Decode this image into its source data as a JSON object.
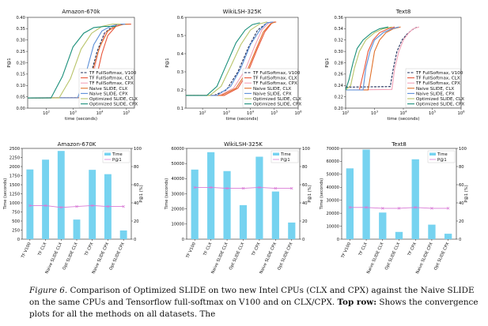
{
  "caption": {
    "figure_label": "Figure 6.",
    "text": " Comparison of Optimized SLIDE on two new Intel CPUs (CLX and CPX) against the Naive SLIDE on the same CPUs and Tensorflow full-softmax on V100 and on CLX/CPX. ",
    "bold": "Top row:",
    "rest": " Shows the convergence plots for all the methods on all datasets. The"
  },
  "colors": {
    "tf_v100": "#1f2d5a",
    "tf_clx": "#e8553a",
    "tf_cpx": "#f2a3b8",
    "naive_clx": "#e0702a",
    "naive_cpx": "#5b8fd8",
    "opt_clx": "#b9c46a",
    "opt_cpx": "#1a8f7a",
    "bar": "#76d3f0",
    "p1": "#d97ad6"
  },
  "chart_data": [
    {
      "type": "line",
      "title": "Amazon-670k",
      "xlabel": "time (seconds)",
      "ylabel": "P@1",
      "xscale": "log",
      "xlim": [
        20,
        200000
      ],
      "ylim": [
        0.0,
        0.4
      ],
      "x_ticks": [
        "10^2",
        "10^3",
        "10^4",
        "10^5"
      ],
      "y_ticks": [
        "0.00",
        "0.05",
        "0.10",
        "0.15",
        "0.20",
        "0.25",
        "0.30",
        "0.35",
        "0.40"
      ],
      "legend_position": "lower right",
      "series": [
        {
          "name": "TF FullSoftmax, V100",
          "color_key": "tf_v100",
          "dashed": true,
          "x": [
            20,
            2000,
            4000,
            8000,
            15000,
            30000,
            60000,
            100000
          ],
          "y": [
            0.045,
            0.046,
            0.12,
            0.25,
            0.33,
            0.36,
            0.37,
            0.37
          ]
        },
        {
          "name": "TF FullSoftmax, CLX",
          "color_key": "tf_clx",
          "x": [
            20,
            4000,
            7000,
            12000,
            20000,
            40000,
            80000,
            150000
          ],
          "y": [
            0.045,
            0.046,
            0.12,
            0.24,
            0.32,
            0.36,
            0.37,
            0.37
          ]
        },
        {
          "name": "TF FullSoftmax, CPX",
          "color_key": "tf_cpx",
          "x": [
            20,
            2500,
            5000,
            9000,
            16000,
            35000,
            70000,
            120000
          ],
          "y": [
            0.045,
            0.046,
            0.12,
            0.25,
            0.33,
            0.36,
            0.37,
            0.37
          ]
        },
        {
          "name": "Naive SLIDE, CLX",
          "color_key": "naive_clx",
          "x": [
            20,
            2500,
            5000,
            10000,
            20000,
            40000,
            80000,
            120000
          ],
          "y": [
            0.045,
            0.046,
            0.15,
            0.27,
            0.34,
            0.36,
            0.37,
            0.37
          ]
        },
        {
          "name": "Naive SLIDE, CPX",
          "color_key": "naive_cpx",
          "x": [
            20,
            1500,
            3000,
            6000,
            12000,
            25000,
            50000,
            90000
          ],
          "y": [
            0.045,
            0.046,
            0.15,
            0.28,
            0.34,
            0.36,
            0.37,
            0.37
          ]
        },
        {
          "name": "Optimized SLIDE, CLX",
          "color_key": "opt_clx",
          "x": [
            20,
            300,
            800,
            2000,
            5000,
            12000,
            30000,
            60000
          ],
          "y": [
            0.045,
            0.045,
            0.13,
            0.26,
            0.33,
            0.36,
            0.37,
            0.37
          ]
        },
        {
          "name": "Optimized SLIDE, CPX",
          "color_key": "opt_cpx",
          "x": [
            20,
            150,
            400,
            1000,
            2500,
            6000,
            15000,
            40000
          ],
          "y": [
            0.045,
            0.045,
            0.14,
            0.27,
            0.33,
            0.355,
            0.36,
            0.36
          ]
        }
      ]
    },
    {
      "type": "line",
      "title": "WikiLSH-325K",
      "xlabel": "time (seconds)",
      "ylabel": "P@1",
      "xscale": "log",
      "xlim": [
        20,
        1000000
      ],
      "ylim": [
        0.1,
        0.6
      ],
      "x_ticks": [
        "10^2",
        "10^3",
        "10^4",
        "10^5",
        "10^6"
      ],
      "y_ticks": [
        "0.1",
        "0.2",
        "0.3",
        "0.4",
        "0.5",
        "0.6"
      ],
      "legend_position": "lower right",
      "series": [
        {
          "name": "TF FullSoftmax, V100",
          "color_key": "tf_v100",
          "dashed": true,
          "x": [
            20,
            300,
            1000,
            3000,
            8000,
            20000,
            50000,
            100000
          ],
          "y": [
            0.17,
            0.17,
            0.2,
            0.3,
            0.43,
            0.53,
            0.57,
            0.575
          ]
        },
        {
          "name": "TF FullSoftmax, CLX",
          "color_key": "tf_clx",
          "x": [
            20,
            800,
            3000,
            8000,
            20000,
            40000,
            80000,
            120000
          ],
          "y": [
            0.17,
            0.17,
            0.21,
            0.3,
            0.43,
            0.52,
            0.57,
            0.575
          ]
        },
        {
          "name": "TF FullSoftmax, CPX",
          "color_key": "tf_cpx",
          "x": [
            20,
            500,
            2000,
            6000,
            15000,
            30000,
            60000,
            100000
          ],
          "y": [
            0.17,
            0.17,
            0.21,
            0.31,
            0.44,
            0.53,
            0.57,
            0.575
          ]
        },
        {
          "name": "Naive SLIDE, CLX",
          "color_key": "naive_clx",
          "x": [
            20,
            600,
            2500,
            7000,
            18000,
            35000,
            70000,
            110000
          ],
          "y": [
            0.17,
            0.17,
            0.21,
            0.3,
            0.43,
            0.52,
            0.565,
            0.575
          ]
        },
        {
          "name": "Naive SLIDE, CPX",
          "color_key": "naive_cpx",
          "x": [
            20,
            400,
            1500,
            4000,
            10000,
            25000,
            50000,
            90000
          ],
          "y": [
            0.17,
            0.17,
            0.22,
            0.32,
            0.45,
            0.53,
            0.57,
            0.575
          ]
        },
        {
          "name": "Optimized SLIDE, CLX",
          "color_key": "opt_clx",
          "x": [
            20,
            200,
            600,
            1500,
            4000,
            10000,
            25000,
            50000
          ],
          "y": [
            0.17,
            0.17,
            0.22,
            0.33,
            0.45,
            0.53,
            0.565,
            0.575
          ]
        },
        {
          "name": "Optimized SLIDE, CPX",
          "color_key": "opt_cpx",
          "x": [
            20,
            150,
            400,
            1000,
            2500,
            6000,
            12000,
            25000
          ],
          "y": [
            0.17,
            0.17,
            0.22,
            0.34,
            0.46,
            0.53,
            0.56,
            0.57
          ]
        }
      ]
    },
    {
      "type": "line",
      "title": "Text8",
      "xlabel": "time (seconds)",
      "ylabel": "P@1",
      "xscale": "log",
      "xlim": [
        100,
        1000000
      ],
      "ylim": [
        0.2,
        0.36
      ],
      "x_ticks": [
        "10^2",
        "10^3",
        "10^4",
        "10^5",
        "10^6"
      ],
      "y_ticks": [
        "0.20",
        "0.22",
        "0.24",
        "0.26",
        "0.28",
        "0.30",
        "0.32",
        "0.34",
        "0.36"
      ],
      "legend_position": "lower right",
      "series": [
        {
          "name": "TF FullSoftmax, V100",
          "color_key": "tf_v100",
          "dashed": true,
          "x": [
            100,
            3500,
            4500,
            6000,
            9000,
            13000,
            20000,
            30000
          ],
          "y": [
            0.237,
            0.238,
            0.27,
            0.3,
            0.32,
            0.33,
            0.338,
            0.343
          ]
        },
        {
          "name": "TF FullSoftmax, CLX",
          "color_key": "tf_clx",
          "x": [
            100,
            300,
            450,
            600,
            900,
            1500,
            3000,
            5000
          ],
          "y": [
            0.232,
            0.232,
            0.27,
            0.3,
            0.32,
            0.333,
            0.34,
            0.343
          ]
        },
        {
          "name": "TF FullSoftmax, CPX",
          "color_key": "tf_cpx",
          "x": [
            100,
            4000,
            5000,
            7000,
            10000,
            15000,
            22000,
            35000
          ],
          "y": [
            0.232,
            0.233,
            0.27,
            0.3,
            0.32,
            0.332,
            0.34,
            0.343
          ]
        },
        {
          "name": "Naive SLIDE, CLX",
          "color_key": "naive_clx",
          "x": [
            100,
            600,
            800,
            1000,
            1500,
            2500,
            4500,
            8000
          ],
          "y": [
            0.232,
            0.232,
            0.27,
            0.3,
            0.32,
            0.333,
            0.34,
            0.343
          ]
        },
        {
          "name": "Naive SLIDE, CPX",
          "color_key": "naive_cpx",
          "x": [
            100,
            400,
            500,
            700,
            1000,
            2000,
            4000,
            7000
          ],
          "y": [
            0.232,
            0.232,
            0.27,
            0.3,
            0.32,
            0.333,
            0.34,
            0.343
          ]
        },
        {
          "name": "Optimized SLIDE, CLX",
          "color_key": "opt_clx",
          "x": [
            100,
            150,
            200,
            300,
            500,
            1000,
            2000,
            4000
          ],
          "y": [
            0.232,
            0.24,
            0.27,
            0.3,
            0.32,
            0.333,
            0.34,
            0.343
          ]
        },
        {
          "name": "Optimized SLIDE, CPX",
          "color_key": "opt_cpx",
          "x": [
            100,
            130,
            180,
            250,
            400,
            800,
            1500,
            3000
          ],
          "y": [
            0.232,
            0.25,
            0.28,
            0.305,
            0.32,
            0.333,
            0.34,
            0.343
          ]
        }
      ]
    },
    {
      "type": "bar",
      "title": "Amazon-670K",
      "ylabel": "Time (seconds)",
      "y2label": "P@1 (%)",
      "categories": [
        "TF V100",
        "TF CLX",
        "Naive SLIDE CLX",
        "Opt SLIDE CLX",
        "TF CPX",
        "Naive SLIDE CPX",
        "Opt SLIDE CPX"
      ],
      "ylim": [
        0,
        2500
      ],
      "y_ticks": [
        "0",
        "250",
        "500",
        "750",
        "1000",
        "1250",
        "1500",
        "1750",
        "2000",
        "2250",
        "2500"
      ],
      "y2lim": [
        0,
        100
      ],
      "y2_ticks": [
        "0",
        "20",
        "40",
        "60",
        "80",
        "100"
      ],
      "legend_position": "upper right",
      "series": [
        {
          "name": "Time",
          "color_key": "bar",
          "values": [
            1920,
            2190,
            2430,
            540,
            1910,
            1790,
            240
          ]
        },
        {
          "name": "P@1",
          "color_key": "p1",
          "axis": "right",
          "values": [
            37,
            37,
            35,
            36,
            37,
            36,
            36
          ]
        }
      ]
    },
    {
      "type": "bar",
      "title": "WikiLSH-325K",
      "ylabel": "Time (seconds)",
      "y2label": "P@1 (%)",
      "categories": [
        "TF V100",
        "TF CLX",
        "Naive SLIDE CLX",
        "Opt SLIDE CLX",
        "TF CPX",
        "Naive SLIDE CPX",
        "Opt SLIDE CPX"
      ],
      "ylim": [
        0,
        60000
      ],
      "y_ticks": [
        "0",
        "10000",
        "20000",
        "30000",
        "40000",
        "50000",
        "60000"
      ],
      "y2lim": [
        0,
        100
      ],
      "y2_ticks": [
        "0",
        "20",
        "40",
        "60",
        "80",
        "100"
      ],
      "legend_position": "upper right",
      "series": [
        {
          "name": "Time",
          "color_key": "bar",
          "values": [
            46000,
            57500,
            45000,
            22500,
            54500,
            31500,
            11000
          ]
        },
        {
          "name": "P@1",
          "color_key": "p1",
          "axis": "right",
          "values": [
            57,
            57,
            56,
            56,
            57,
            56,
            56
          ]
        }
      ]
    },
    {
      "type": "bar",
      "title": "Text8",
      "ylabel": "Time (seconds)",
      "y2label": "P@1 (%)",
      "categories": [
        "TF V100",
        "TF CLX",
        "Naive SLIDE CLX",
        "Opt SLIDE CLX",
        "TF CPX",
        "Naive SLIDE CPX",
        "Opt SLIDE CPX"
      ],
      "ylim": [
        0,
        75000
      ],
      "y_ticks": [
        "0",
        "10000",
        "20000",
        "30000",
        "40000",
        "50000",
        "60000",
        "70000"
      ],
      "y2lim": [
        0,
        100
      ],
      "y2_ticks": [
        "0",
        "20",
        "40",
        "60",
        "80",
        "100"
      ],
      "legend_position": "upper right",
      "series": [
        {
          "name": "Time",
          "color_key": "bar",
          "values": [
            58500,
            74000,
            22000,
            6000,
            66000,
            12000,
            4500
          ]
        },
        {
          "name": "P@1",
          "color_key": "p1",
          "axis": "right",
          "values": [
            35,
            35,
            34,
            34,
            35,
            34,
            34
          ]
        }
      ]
    }
  ]
}
